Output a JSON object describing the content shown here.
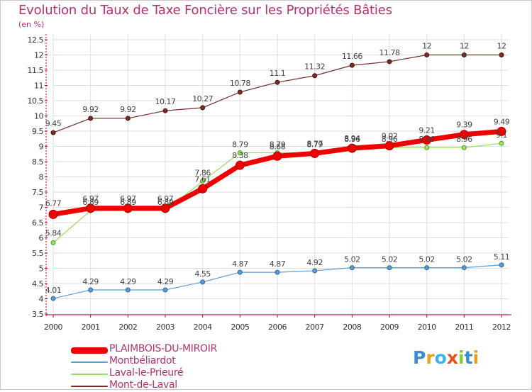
{
  "page": {
    "title": "Evolution du Taux de Taxe Foncière sur les Propriétés Bâties",
    "unit": "(en %)"
  },
  "colors": {
    "title": "#b4326e",
    "grid": "#dedede",
    "axis": "#c0002e"
  },
  "logo": {
    "text": "Proxiti",
    "letters": [
      {
        "ch": "P",
        "color": "#3c8cd2"
      },
      {
        "ch": "r",
        "color": "#e8a020"
      },
      {
        "ch": "o",
        "color": "#3cb4e6"
      },
      {
        "ch": "x",
        "color": "#e8501e"
      },
      {
        "ch": "i",
        "color": "#8cc83c"
      },
      {
        "ch": "t",
        "color": "#3c8cd2"
      },
      {
        "ch": "i",
        "color": "#e8a020"
      }
    ]
  },
  "chart_data": {
    "type": "line",
    "title": "Evolution du Taux de Taxe Foncière sur les Propriétés Bâties",
    "ylabel": "(en %)",
    "xlabel": "",
    "categories": [
      "2000",
      "2001",
      "2002",
      "2003",
      "2004",
      "2005",
      "2006",
      "2007",
      "2008",
      "2009",
      "2010",
      "2011",
      "2012"
    ],
    "ylim": [
      3.5,
      12.5
    ],
    "yticks": [
      "3.5",
      "4",
      "4.5",
      "5",
      "5.5",
      "6",
      "6.5",
      "7",
      "7.5",
      "8",
      "8.5",
      "9",
      "9.5",
      "10",
      "10.5",
      "11",
      "11.5",
      "12",
      "12.5"
    ],
    "grid": true,
    "legend_position": "bottom-left",
    "series": [
      {
        "name": "PLAIMBOIS-DU-MIROIR",
        "color": "#ee0000",
        "values": [
          6.77,
          6.97,
          6.97,
          6.97,
          7.61,
          8.38,
          8.68,
          8.77,
          8.94,
          9.02,
          9.21,
          9.39,
          9.49
        ],
        "labels": [
          "6.77",
          "6.97",
          "6.97",
          "6.97",
          "7.61",
          "8.38",
          "8.68",
          "8.77",
          "8.94",
          "9.02",
          "9.21",
          "9.39",
          "9.49"
        ]
      },
      {
        "name": "Montbéliardot",
        "color": "#5b9bd5",
        "values": [
          4.01,
          4.29,
          4.29,
          4.29,
          4.55,
          4.87,
          4.87,
          4.92,
          5.02,
          5.02,
          5.02,
          5.02,
          5.11
        ],
        "labels": [
          "4.01",
          "4.29",
          "4.29",
          "4.29",
          "4.55",
          "4.87",
          "4.87",
          "4.92",
          "5.02",
          "5.02",
          "5.02",
          "5.02",
          "5.11"
        ]
      },
      {
        "name": "Laval-le-Prieuré",
        "color": "#99dd66",
        "values": [
          5.84,
          6.89,
          6.89,
          6.89,
          7.86,
          8.79,
          8.79,
          8.79,
          8.96,
          8.96,
          8.96,
          8.96,
          9.1
        ],
        "labels": [
          "5.84",
          "6.89",
          "6.89",
          "6.89",
          "7.86",
          "8.79",
          "8.79",
          "8.79",
          "8.96",
          "8.96",
          "8.96",
          "8.96",
          "9.1"
        ]
      },
      {
        "name": "Mont-de-Laval",
        "color": "#7b2a2a",
        "values": [
          9.45,
          9.92,
          9.92,
          10.17,
          10.27,
          10.78,
          11.1,
          11.32,
          11.66,
          11.78,
          12,
          12,
          12
        ],
        "labels": [
          "9.45",
          "9.92",
          "9.92",
          "10.17",
          "10.27",
          "10.78",
          "11.1",
          "11.32",
          "11.66",
          "11.78",
          "12",
          "12",
          "12"
        ]
      }
    ]
  }
}
